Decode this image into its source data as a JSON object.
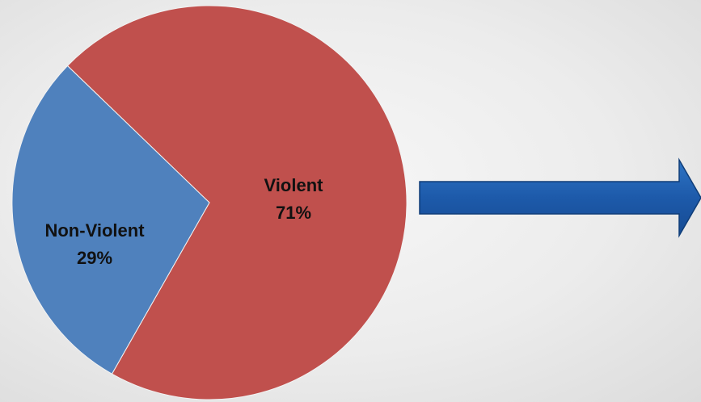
{
  "chart_data": {
    "type": "pie",
    "slices": [
      {
        "label": "Violent",
        "value": 71,
        "value_label": "71%",
        "color": "#C0504D"
      },
      {
        "label": "Non-Violent",
        "value": 29,
        "value_label": "29%",
        "color": "#4F81BD"
      }
    ],
    "title": "",
    "legend": "none",
    "data_labels": "inside"
  },
  "arrow": {
    "direction": "right",
    "color": "#1F5FA8"
  }
}
